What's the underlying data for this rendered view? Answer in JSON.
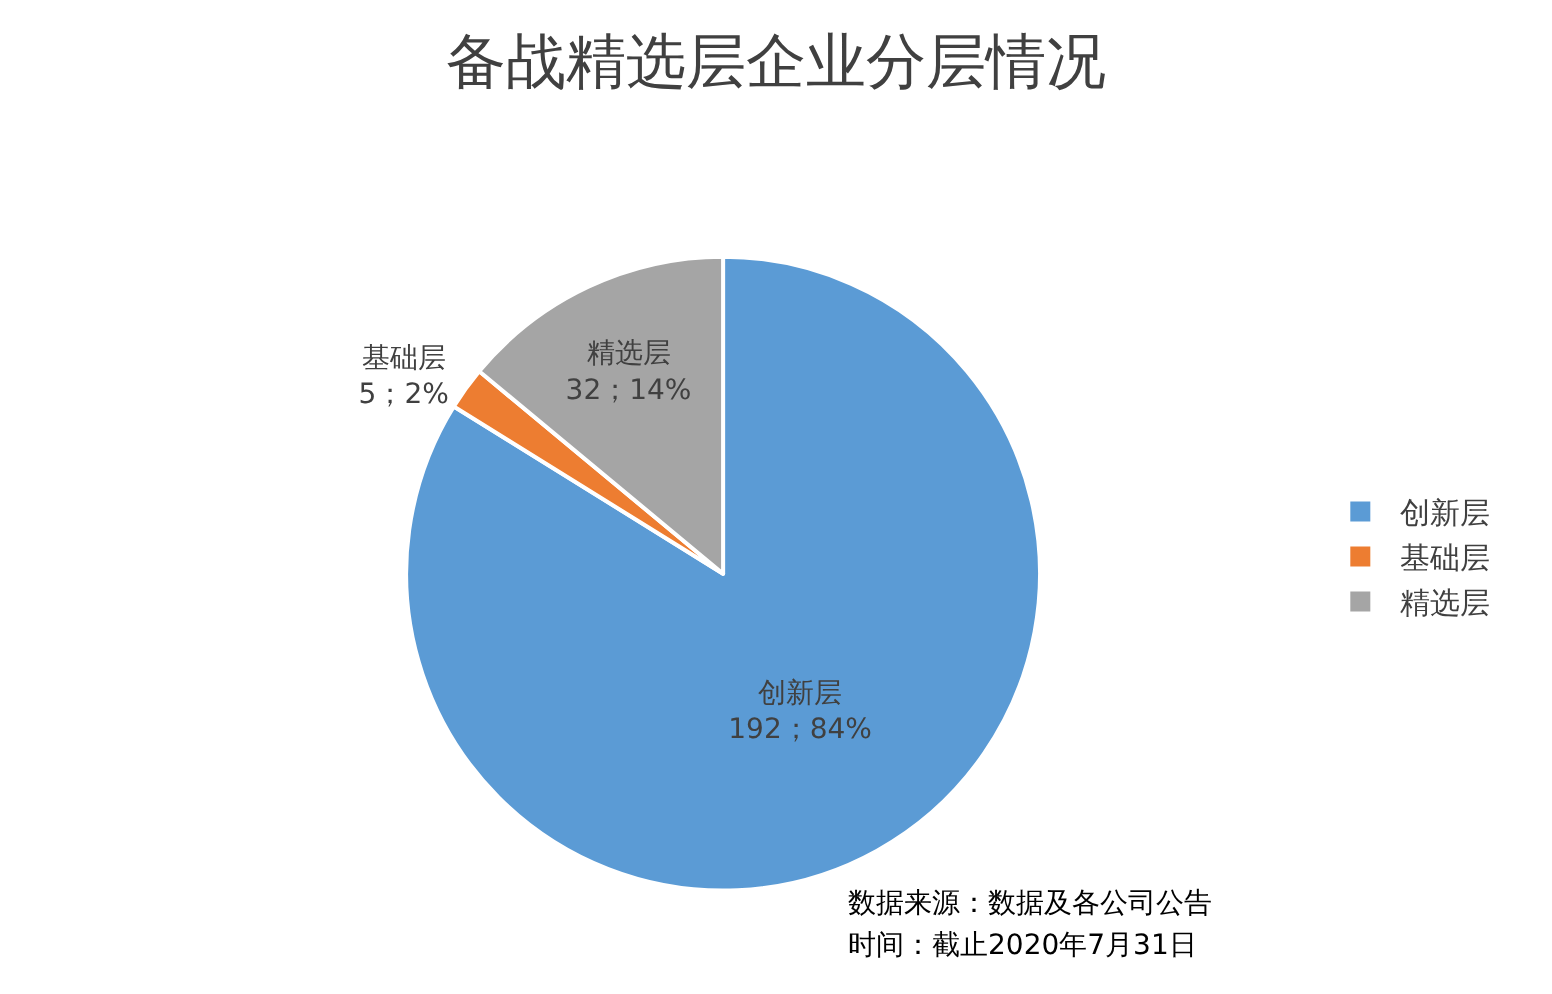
{
  "chart_data": {
    "type": "pie",
    "title": "备战精选层企业分层情况",
    "categories": [
      "创新层",
      "基础层",
      "精选层"
    ],
    "values": [
      192,
      5,
      32
    ],
    "colors": [
      "#5b9bd5",
      "#ed7d31",
      "#a5a5a5"
    ],
    "value_labels": [
      "192；84%",
      "5；2%",
      "32；14%"
    ],
    "legend": "right",
    "annotations": [
      "数据来源：数据及各公司公告",
      "时间：截止2020年7月31日"
    ]
  }
}
